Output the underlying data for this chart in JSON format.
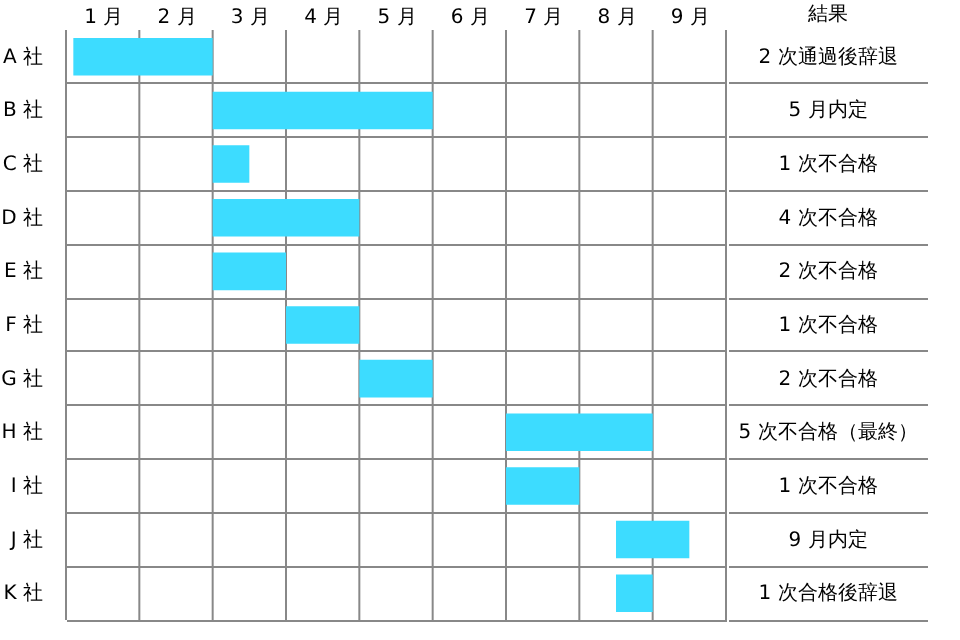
{
  "chart_data": {
    "type": "bar",
    "orientation": "horizontal",
    "categories": [
      "A 社",
      "B 社",
      "C 社",
      "D 社",
      "E 社",
      "F 社",
      "G 社",
      "H 社",
      "I 社",
      "J 社",
      "K 社"
    ],
    "base": [
      0.1,
      2,
      2,
      2,
      2,
      3,
      4,
      6,
      6,
      7.5,
      7.5
    ],
    "values": [
      1.9,
      3,
      0.5,
      2,
      1,
      1,
      1,
      2,
      1,
      1,
      0.5
    ],
    "color": "#3ddcff",
    "xlim": [
      0,
      9
    ],
    "xticks": [
      {
        "value": 0,
        "label": null
      },
      {
        "value": 0.5,
        "label": "1 月"
      },
      {
        "value": 1,
        "label": null
      },
      {
        "value": 1.5,
        "label": "2 月"
      },
      {
        "value": 2,
        "label": null
      },
      {
        "value": 2.5,
        "label": "3 月"
      },
      {
        "value": 3,
        "label": null
      },
      {
        "value": 3.5,
        "label": "4 月"
      },
      {
        "value": 4,
        "label": null
      },
      {
        "value": 4.5,
        "label": "5 月"
      },
      {
        "value": 5,
        "label": null
      },
      {
        "value": 5.5,
        "label": "6 月"
      },
      {
        "value": 6,
        "label": null
      },
      {
        "value": 6.5,
        "label": "7 月"
      },
      {
        "value": 7,
        "label": null
      },
      {
        "value": 7.5,
        "label": "8 月"
      },
      {
        "value": 8,
        "label": null
      },
      {
        "value": 8.5,
        "label": "9 月"
      },
      {
        "value": 9,
        "label": null
      }
    ],
    "grid": true,
    "annotations": [
      "結果",
      "2 次通過後辞退",
      "5 月内定",
      "1 次不合格",
      "4 次不合格",
      "2 次不合格",
      "1 次不合格",
      "2 次不合格",
      "5 次不合格（最終）",
      "1 次不合格",
      "9 月内定",
      "1 次合格後辞退"
    ]
  }
}
